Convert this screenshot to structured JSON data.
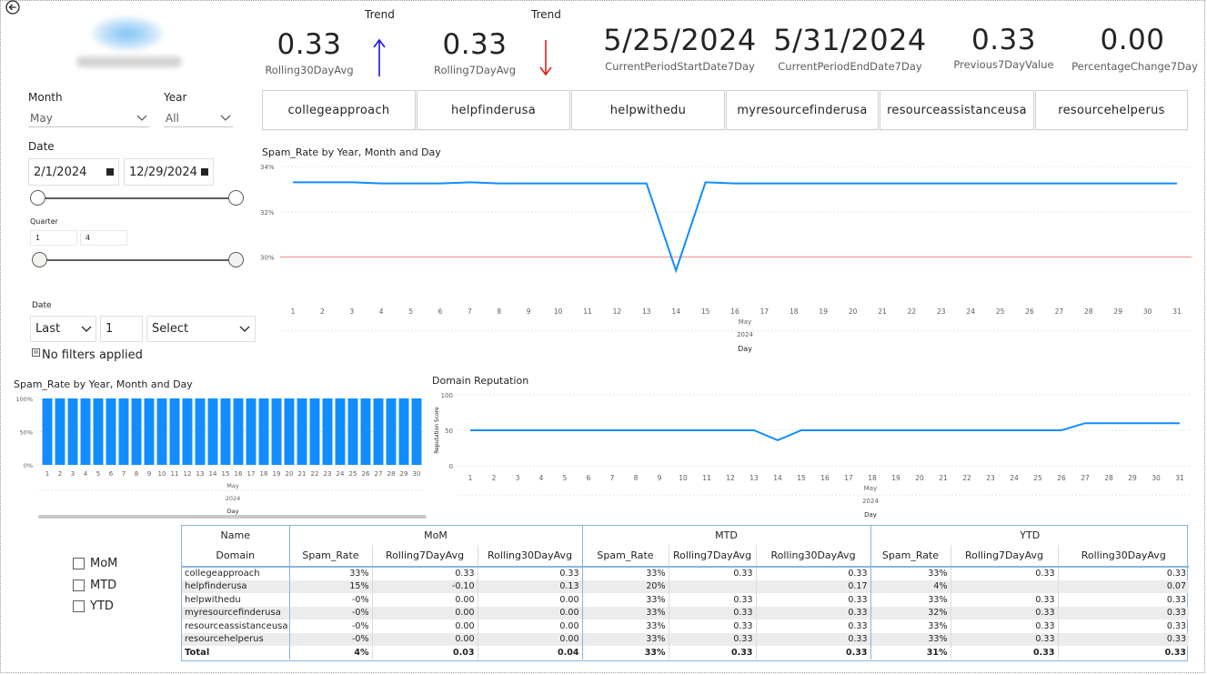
{
  "kpis": {
    "rolling30": {
      "value": "0.33",
      "label": "Rolling30DayAvg",
      "trend_label": "Trend",
      "trend": "up",
      "trend_color": "#1a1adc"
    },
    "rolling7": {
      "value": "0.33",
      "label": "Rolling7DayAvg",
      "trend_label": "Trend",
      "trend": "down",
      "trend_color": "#e02020"
    },
    "start": {
      "value": "5/25/2024",
      "label": "CurrentPeriodStartDate7Day"
    },
    "end": {
      "value": "5/31/2024",
      "label": "CurrentPeriodEndDate7Day"
    },
    "prev": {
      "value": "0.33",
      "label": "Previous7DayValue"
    },
    "pct": {
      "value": "0.00",
      "label": "PercentageChange7Day"
    }
  },
  "filters": {
    "month": {
      "label": "Month",
      "value": "May"
    },
    "year": {
      "label": "Year",
      "value": "All"
    },
    "date": {
      "label": "Date",
      "start": "2/1/2024",
      "end": "12/29/2024"
    },
    "quarter": {
      "label": "Quarter",
      "start": "1",
      "end": "4"
    },
    "relative_date": {
      "label": "Date",
      "mode": "Last",
      "count": "1",
      "unit": "Select",
      "status": "No filters applied"
    }
  },
  "domain_tiles": [
    "collegeapproach",
    "helpfinderusa",
    "helpwithedu",
    "myresourcefinderusa",
    "resourceassistanceusa",
    "resourcehelperus"
  ],
  "period_toggles": [
    "MoM",
    "MTD",
    "YTD"
  ],
  "colors": {
    "accent": "#118dff",
    "threshold": "#f4a6a8",
    "border": "#8ab4e0"
  },
  "chart_data": [
    {
      "type": "line",
      "title": "Spam_Rate by Year, Month and Day",
      "x": [
        1,
        2,
        3,
        4,
        5,
        6,
        7,
        8,
        9,
        10,
        11,
        12,
        13,
        14,
        15,
        16,
        17,
        18,
        19,
        20,
        21,
        22,
        23,
        24,
        25,
        26,
        27,
        28,
        29,
        30,
        31
      ],
      "series": [
        {
          "values": [
            33.3,
            33.3,
            33.3,
            33.25,
            33.25,
            33.25,
            33.3,
            33.25,
            33.25,
            33.25,
            33.25,
            33.25,
            33.25,
            29.4,
            33.3,
            33.25,
            33.25,
            33.25,
            33.25,
            33.25,
            33.25,
            33.25,
            33.25,
            33.25,
            33.25,
            33.25,
            33.25,
            33.25,
            33.25,
            33.25,
            33.25
          ]
        }
      ],
      "reference_line": 30,
      "yticks": [
        "34%",
        "32%",
        "30%"
      ],
      "ylim": [
        29.5,
        34
      ],
      "x_group_labels": [
        "May",
        "2024",
        "Day"
      ],
      "grid": true
    },
    {
      "type": "bar",
      "title": "Spam_Rate by Year, Month and Day",
      "categories": [
        1,
        2,
        3,
        4,
        5,
        6,
        7,
        8,
        9,
        10,
        11,
        12,
        13,
        14,
        15,
        16,
        17,
        18,
        19,
        20,
        21,
        22,
        23,
        24,
        25,
        26,
        27,
        28,
        29,
        30
      ],
      "values": [
        100,
        100,
        100,
        100,
        100,
        100,
        100,
        100,
        100,
        100,
        100,
        100,
        100,
        100,
        100,
        100,
        100,
        100,
        100,
        100,
        100,
        100,
        100,
        100,
        100,
        100,
        100,
        100,
        100,
        100
      ],
      "yticks": [
        "100%",
        "50%",
        "0%"
      ],
      "ylim": [
        0,
        100
      ],
      "x_group_labels": [
        "May",
        "2024",
        "Day"
      ]
    },
    {
      "type": "line",
      "title": "Domain Reputation",
      "ylabel": "Reputation Score",
      "x": [
        1,
        2,
        3,
        4,
        5,
        6,
        7,
        8,
        9,
        10,
        11,
        12,
        13,
        14,
        15,
        16,
        17,
        18,
        19,
        20,
        21,
        22,
        23,
        24,
        25,
        26,
        27,
        28,
        29,
        30,
        31
      ],
      "series": [
        {
          "values": [
            50,
            50,
            50,
            50,
            50,
            50,
            50,
            50,
            50,
            50,
            50,
            50,
            50,
            36,
            50,
            50,
            50,
            50,
            50,
            50,
            50,
            50,
            50,
            50,
            50,
            50,
            60,
            60,
            60,
            60,
            60
          ]
        }
      ],
      "yticks": [
        "100",
        "50",
        "0"
      ],
      "ylim": [
        0,
        100
      ],
      "x_group_labels": [
        "May",
        "2024",
        "Day"
      ]
    }
  ],
  "matrix": {
    "corner": [
      "Name",
      "Domain"
    ],
    "groups": [
      "MoM",
      "MTD",
      "YTD"
    ],
    "subheaders": [
      "Spam_Rate",
      "Rolling7DayAvg",
      "Rolling30DayAvg"
    ],
    "rows": [
      {
        "name": "collegeapproach",
        "cells": [
          "33%",
          "0.33",
          "0.33",
          "33%",
          "0.33",
          "0.33",
          "33%",
          "0.33",
          "0.33"
        ]
      },
      {
        "name": "helpfinderusa",
        "cells": [
          "15%",
          "-0.10",
          "0.13",
          "20%",
          "",
          "0.17",
          "4%",
          "",
          "0.07"
        ]
      },
      {
        "name": "helpwithedu",
        "cells": [
          "-0%",
          "0.00",
          "0.00",
          "33%",
          "0.33",
          "0.33",
          "33%",
          "0.33",
          "0.33"
        ]
      },
      {
        "name": "myresourcefinderusa",
        "cells": [
          "-0%",
          "0.00",
          "0.00",
          "33%",
          "0.33",
          "0.33",
          "32%",
          "0.33",
          "0.33"
        ]
      },
      {
        "name": "resourceassistanceusa",
        "cells": [
          "-0%",
          "0.00",
          "0.00",
          "33%",
          "0.33",
          "0.33",
          "33%",
          "0.33",
          "0.33"
        ]
      },
      {
        "name": "resourcehelperus",
        "cells": [
          "-0%",
          "0.00",
          "0.00",
          "33%",
          "0.33",
          "0.33",
          "33%",
          "0.33",
          "0.33"
        ]
      },
      {
        "name": "Total",
        "cells": [
          "4%",
          "0.03",
          "0.04",
          "33%",
          "0.33",
          "0.33",
          "31%",
          "0.33",
          "0.33"
        ]
      }
    ]
  }
}
